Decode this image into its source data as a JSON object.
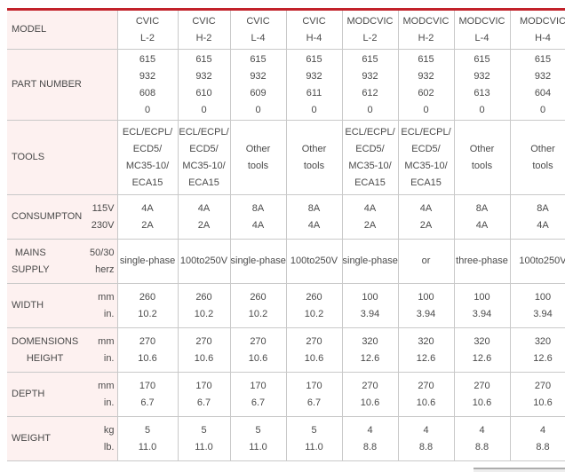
{
  "theme": {
    "accent_red": "#c2222a",
    "label_column_bg": "#fdf1f0",
    "grid_border": "#c9c9c9",
    "text_color": "#4a4a4a"
  },
  "table": {
    "column_ids": [
      "cvic-l2",
      "cvic-h2",
      "cvic-l4",
      "cvic-h4",
      "modcvic-l2",
      "modcvic-h2",
      "modcvic-l4",
      "modcvic-h4"
    ],
    "rows": [
      {
        "id": "model",
        "label": [
          "MODEL"
        ],
        "sub": [],
        "cells": [
          [
            "CVIC",
            "L-2"
          ],
          [
            "CVIC",
            "H-2"
          ],
          [
            "CVIC",
            "L-4"
          ],
          [
            "CVIC",
            "H-4"
          ],
          [
            "MODCVIC",
            "L-2"
          ],
          [
            "MODCVIC",
            "H-2"
          ],
          [
            "MODCVIC",
            "L-4"
          ],
          [
            "MODCVIC",
            "H-4"
          ]
        ]
      },
      {
        "id": "part-number",
        "label": [
          "PART NUMBER"
        ],
        "sub": [],
        "cells": [
          [
            "615",
            "932",
            "608",
            "0"
          ],
          [
            "615",
            "932",
            "610",
            "0"
          ],
          [
            "615",
            "932",
            "609",
            "0"
          ],
          [
            "615",
            "932",
            "611",
            "0"
          ],
          [
            "615",
            "932",
            "612",
            "0"
          ],
          [
            "615",
            "932",
            "602",
            "0"
          ],
          [
            "615",
            "932",
            "613",
            "0"
          ],
          [
            "615",
            "932",
            "604",
            "0"
          ]
        ]
      },
      {
        "id": "tools",
        "label": [
          "TOOLS"
        ],
        "sub": [],
        "cells": [
          [
            "ECL/ECPL/",
            "ECD5/",
            "MC35-10/",
            "ECA15"
          ],
          [
            "ECL/ECPL/",
            "ECD5/",
            "MC35-10/",
            "ECA15"
          ],
          [
            "Other",
            "tools"
          ],
          [
            "Other",
            "tools"
          ],
          [
            "ECL/ECPL/",
            "ECD5/",
            "MC35-10/",
            "ECA15"
          ],
          [
            "ECL/ECPL/",
            "ECD5/",
            "MC35-10/",
            "ECA15"
          ],
          [
            "Other",
            "tools"
          ],
          [
            "Other",
            "tools"
          ]
        ]
      },
      {
        "id": "consumption",
        "label": [
          "CONSUMPTON"
        ],
        "sub": [
          "115V",
          "230V"
        ],
        "cells": [
          [
            "4A",
            "2A"
          ],
          [
            "4A",
            "2A"
          ],
          [
            "8A",
            "4A"
          ],
          [
            "8A",
            "4A"
          ],
          [
            "4A",
            "2A"
          ],
          [
            "4A",
            "2A"
          ],
          [
            "8A",
            "4A"
          ],
          [
            "8A",
            "4A"
          ]
        ]
      },
      {
        "id": "mains-supply",
        "label": [
          "MAINS",
          "SUPPLY"
        ],
        "sub": [
          "50/30",
          "herz"
        ],
        "cells": [
          [
            "single-phase"
          ],
          [
            "100to250V"
          ],
          [
            "single-phase"
          ],
          [
            "100to250V"
          ],
          [
            "single-phase"
          ],
          [
            "or"
          ],
          [
            "three-phase"
          ],
          [
            "100to250V"
          ]
        ]
      },
      {
        "id": "width",
        "label": [
          "WIDTH"
        ],
        "sub": [
          "mm",
          "in."
        ],
        "cells": [
          [
            "260",
            "10.2"
          ],
          [
            "260",
            "10.2"
          ],
          [
            "260",
            "10.2"
          ],
          [
            "260",
            "10.2"
          ],
          [
            "100",
            "3.94"
          ],
          [
            "100",
            "3.94"
          ],
          [
            "100",
            "3.94"
          ],
          [
            "100",
            "3.94"
          ]
        ]
      },
      {
        "id": "dimensions-height",
        "label": [
          "DOMENSIONS",
          "HEIGHT"
        ],
        "sub": [
          "mm",
          "in."
        ],
        "cells": [
          [
            "270",
            "10.6"
          ],
          [
            "270",
            "10.6"
          ],
          [
            "270",
            "10.6"
          ],
          [
            "270",
            "10.6"
          ],
          [
            "320",
            "12.6"
          ],
          [
            "320",
            "12.6"
          ],
          [
            "320",
            "12.6"
          ],
          [
            "320",
            "12.6"
          ]
        ]
      },
      {
        "id": "depth",
        "label": [
          "DEPTH"
        ],
        "sub": [
          "mm",
          "in."
        ],
        "cells": [
          [
            "170",
            "6.7"
          ],
          [
            "170",
            "6.7"
          ],
          [
            "170",
            "6.7"
          ],
          [
            "170",
            "6.7"
          ],
          [
            "270",
            "10.6"
          ],
          [
            "270",
            "10.6"
          ],
          [
            "270",
            "10.6"
          ],
          [
            "270",
            "10.6"
          ]
        ]
      },
      {
        "id": "weight",
        "label": [
          "WEIGHT"
        ],
        "sub": [
          "kg",
          "lb."
        ],
        "cells": [
          [
            "5",
            "11.0"
          ],
          [
            "5",
            "11.0"
          ],
          [
            "5",
            "11.0"
          ],
          [
            "5",
            "11.0"
          ],
          [
            "4",
            "8.8"
          ],
          [
            "4",
            "8.8"
          ],
          [
            "4",
            "8.8"
          ],
          [
            "4",
            "8.8"
          ]
        ]
      }
    ]
  }
}
